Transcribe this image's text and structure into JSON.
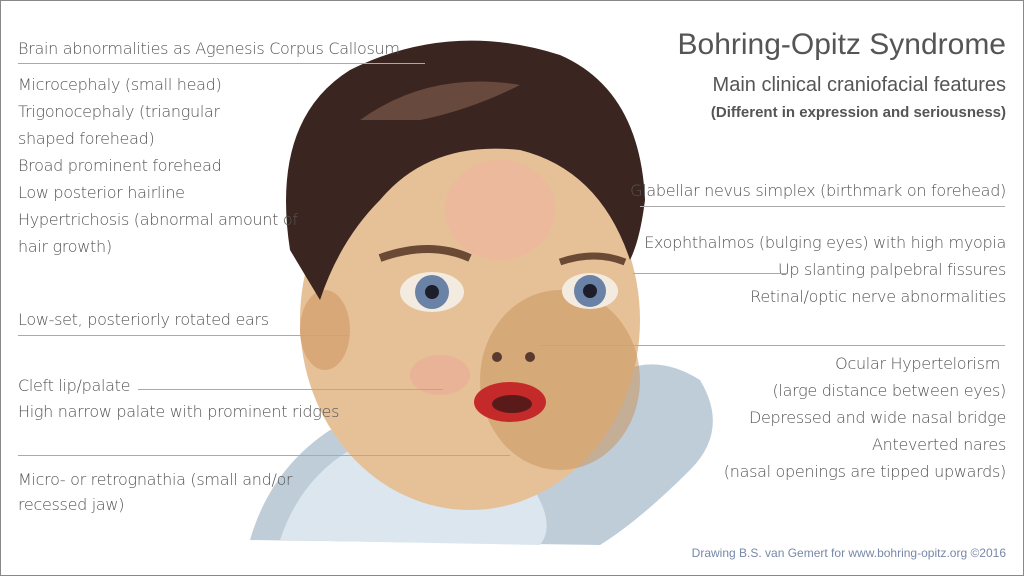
{
  "title": "Bohring-Opitz Syndrome",
  "subtitle": "Main clinical craniofacial features",
  "subtitle_note": "(Different in expression and seriousness)",
  "left_features": [
    "Brain abnormalities as Agenesis Corpus Callosum",
    "Microcephaly (small head)",
    "Trigonocephaly (triangular",
    "shaped forehead)",
    "Broad prominent forehead",
    "Low posterior hairline",
    "Hypertrichosis (abnormal amount of",
    "hair growth)",
    "Low-set, posteriorly rotated ears",
    "Cleft lip/palate",
    "High narrow palate with prominent ridges",
    "Micro- or retrognathia (small and/or",
    "recessed jaw)"
  ],
  "right_features": [
    "Glabellar nevus simplex (birthmark on forehead)",
    "Exophthalmos (bulging eyes) with high myopia",
    "Up slanting palpebral fissures",
    "Retinal/optic nerve abnormalities",
    "Ocular Hypertelorism",
    "(large distance between eyes)",
    "Depressed and wide nasal bridge",
    "Anteverted nares",
    "(nasal openings are tipped upwards)"
  ],
  "credit": "Drawing B.S. van Gemert for www.bohring-opitz.org ©2016",
  "colors": {
    "text": "#555555",
    "credit": "#7788a8",
    "hair": "#3a2520",
    "skin": "#e8c49a",
    "shirt": "#8fa3b8"
  }
}
